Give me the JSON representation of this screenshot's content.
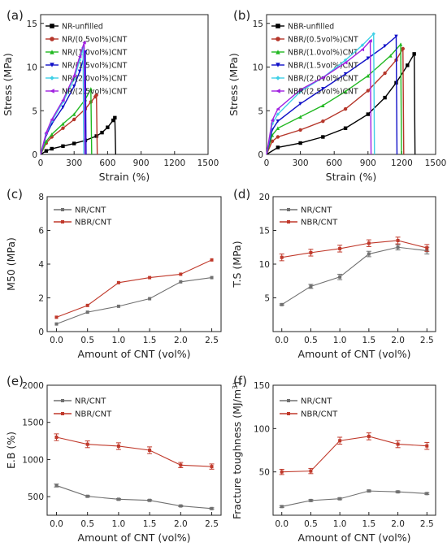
{
  "chart_data": [
    {
      "type": "line",
      "panel_label": "(a)",
      "xlabel": "Strain (%)",
      "ylabel": "Stress (MPa)",
      "xlim": [
        0,
        1500
      ],
      "ylim": [
        0,
        16
      ],
      "xticks": [
        0,
        300,
        600,
        900,
        1200,
        1500
      ],
      "yticks": [
        0,
        5,
        10,
        15
      ],
      "legend_position": "top-left",
      "series": [
        {
          "name": "NR-unfilled",
          "color": "#000000",
          "marker": "square",
          "x": [
            0,
            50,
            100,
            200,
            300,
            400,
            500,
            550,
            600,
            650,
            665
          ],
          "y": [
            0,
            0.4,
            0.65,
            0.95,
            1.25,
            1.6,
            2.1,
            2.5,
            3.1,
            3.9,
            4.2
          ]
        },
        {
          "name": "NR/(0.5vol%)CNT",
          "color": "#b5362a",
          "marker": "circle",
          "x": [
            0,
            50,
            100,
            200,
            300,
            400,
            450,
            490,
            500
          ],
          "y": [
            0,
            1.3,
            2.0,
            3.0,
            4.0,
            5.2,
            6.0,
            6.6,
            6.8
          ]
        },
        {
          "name": "NR/(1.0vol%)CNT",
          "color": "#22b822",
          "marker": "triangle-up",
          "x": [
            0,
            50,
            100,
            200,
            300,
            400,
            450
          ],
          "y": [
            0,
            1.5,
            2.3,
            3.5,
            4.6,
            6.3,
            7.5
          ]
        },
        {
          "name": "NR/(1.5vol%)CNT",
          "color": "#1010c8",
          "marker": "triangle-down",
          "x": [
            0,
            50,
            100,
            200,
            300,
            350,
            390,
            400
          ],
          "y": [
            0,
            2.2,
            3.5,
            5.4,
            7.8,
            9.5,
            11.2,
            11.7
          ]
        },
        {
          "name": "NR/(2.0vol%)CNT",
          "color": "#3fd0e6",
          "marker": "diamond",
          "x": [
            0,
            50,
            100,
            200,
            300,
            350,
            380
          ],
          "y": [
            0,
            2.4,
            3.8,
            6.0,
            8.6,
            10.8,
            12.2
          ]
        },
        {
          "name": "NR/(2.5vol%)CNT",
          "color": "#a020e0",
          "marker": "triangle-left",
          "x": [
            0,
            50,
            100,
            200,
            300,
            350,
            390
          ],
          "y": [
            0,
            2.5,
            4.0,
            6.2,
            9.0,
            11.2,
            12.8
          ]
        }
      ]
    },
    {
      "type": "line",
      "panel_label": "(b)",
      "xlabel": "Strain (%)",
      "ylabel": "Stress (MPa)",
      "xlim": [
        0,
        1500
      ],
      "ylim": [
        0,
        16
      ],
      "xticks": [
        0,
        300,
        600,
        900,
        1200,
        1500
      ],
      "yticks": [
        0,
        5,
        10,
        15
      ],
      "legend_position": "top-left",
      "series": [
        {
          "name": "NBR-unfilled",
          "color": "#000000",
          "marker": "square",
          "x": [
            0,
            100,
            300,
            500,
            700,
            900,
            1050,
            1150,
            1250,
            1310
          ],
          "y": [
            0,
            0.8,
            1.3,
            2.0,
            3.0,
            4.6,
            6.5,
            8.2,
            10.2,
            11.5
          ]
        },
        {
          "name": "NBR/(0.5vol%)CNT",
          "color": "#b5362a",
          "marker": "circle",
          "x": [
            0,
            50,
            100,
            300,
            500,
            700,
            900,
            1050,
            1150,
            1210
          ],
          "y": [
            0,
            1.5,
            2.0,
            2.8,
            3.8,
            5.2,
            7.3,
            9.3,
            10.8,
            12.1
          ]
        },
        {
          "name": "NBR/(1.0vol%)CNT",
          "color": "#22b822",
          "marker": "triangle-up",
          "x": [
            0,
            50,
            100,
            300,
            500,
            700,
            900,
            1100,
            1190
          ],
          "y": [
            0,
            2.2,
            3.0,
            4.3,
            5.6,
            7.2,
            9.0,
            11.3,
            12.6
          ]
        },
        {
          "name": "NBR/(1.5vol%)CNT",
          "color": "#1010c8",
          "marker": "triangle-down",
          "x": [
            0,
            50,
            100,
            300,
            500,
            700,
            900,
            1050,
            1150
          ],
          "y": [
            0,
            2.8,
            3.8,
            5.8,
            7.5,
            9.2,
            11.0,
            12.4,
            13.5
          ]
        },
        {
          "name": "NBR/(2.0vol%)CNT",
          "color": "#3fd0e6",
          "marker": "diamond",
          "x": [
            0,
            50,
            100,
            300,
            500,
            700,
            850,
            950
          ],
          "y": [
            0,
            3.5,
            4.6,
            7.2,
            8.8,
            10.8,
            12.5,
            13.8
          ]
        },
        {
          "name": "NBR/(2.5vol%)CNT",
          "color": "#a020e0",
          "marker": "triangle-left",
          "x": [
            0,
            50,
            100,
            300,
            500,
            700,
            850,
            920
          ],
          "y": [
            0,
            3.9,
            5.2,
            7.4,
            8.8,
            10.5,
            12.0,
            13.0
          ]
        }
      ]
    },
    {
      "type": "line",
      "panel_label": "(c)",
      "xlabel": "Amount of CNT (vol%)",
      "ylabel": "M50 (MPa)",
      "x": [
        0.0,
        0.5,
        1.0,
        1.5,
        2.0,
        2.5
      ],
      "xlim": [
        -0.15,
        2.65
      ],
      "ylim": [
        0,
        8
      ],
      "xticks": [
        "0.0",
        "0.5",
        "1.0",
        "1.5",
        "2.0",
        "2.5"
      ],
      "yticks": [
        0,
        2,
        4,
        6,
        8
      ],
      "legend_position": "top-left",
      "series": [
        {
          "name": "NR/CNT",
          "color": "#707070",
          "values": [
            0.45,
            1.15,
            1.5,
            1.95,
            2.95,
            3.2
          ]
        },
        {
          "name": "NBR/CNT",
          "color": "#c0392b",
          "values": [
            0.85,
            1.55,
            2.9,
            3.2,
            3.4,
            4.25
          ]
        }
      ]
    },
    {
      "type": "line",
      "panel_label": "(d)",
      "xlabel": "Amount of CNT (vol%)",
      "ylabel": "T.S (MPa)",
      "x": [
        0.0,
        0.5,
        1.0,
        1.5,
        2.0,
        2.5
      ],
      "xlim": [
        -0.15,
        2.65
      ],
      "ylim": [
        0,
        20
      ],
      "xticks": [
        "0.0",
        "0.5",
        "1.0",
        "1.5",
        "2.0",
        "2.5"
      ],
      "yticks": [
        5,
        10,
        15,
        20
      ],
      "legend_position": "top-left",
      "series": [
        {
          "name": "NR/CNT",
          "color": "#707070",
          "values": [
            4.0,
            6.7,
            8.1,
            11.5,
            12.5,
            12.0
          ],
          "errors": [
            0.1,
            0.3,
            0.4,
            0.4,
            0.4,
            0.5
          ]
        },
        {
          "name": "NBR/CNT",
          "color": "#c0392b",
          "values": [
            11.0,
            11.7,
            12.3,
            13.1,
            13.5,
            12.4
          ],
          "errors": [
            0.5,
            0.5,
            0.5,
            0.5,
            0.5,
            0.5
          ]
        }
      ]
    },
    {
      "type": "line",
      "panel_label": "(e)",
      "xlabel": "Amount of CNT (vol%)",
      "ylabel": "E.B (%)",
      "x": [
        0.0,
        0.5,
        1.0,
        1.5,
        2.0,
        2.5
      ],
      "xlim": [
        -0.15,
        2.65
      ],
      "ylim": [
        250,
        2000
      ],
      "xticks": [
        "0.0",
        "0.5",
        "1.0",
        "1.5",
        "2.0",
        "2.5"
      ],
      "yticks": [
        500,
        1000,
        1500,
        2000
      ],
      "legend_position": "top-left",
      "series": [
        {
          "name": "NR/CNT",
          "color": "#707070",
          "values": [
            650,
            505,
            465,
            450,
            375,
            340
          ],
          "errors": [
            20,
            10,
            10,
            10,
            10,
            10
          ]
        },
        {
          "name": "NBR/CNT",
          "color": "#c0392b",
          "values": [
            1300,
            1205,
            1180,
            1125,
            925,
            905
          ],
          "errors": [
            45,
            45,
            45,
            45,
            35,
            35
          ]
        }
      ]
    },
    {
      "type": "line",
      "panel_label": "(f)",
      "xlabel": "Amount of CNT (vol%)",
      "ylabel": "Fracture toughness (MJ/m",
      "ylabel_sup": "3",
      "ylabel_end": ")",
      "x": [
        0.0,
        0.5,
        1.0,
        1.5,
        2.0,
        2.5
      ],
      "xlim": [
        -0.15,
        2.65
      ],
      "ylim": [
        0,
        150
      ],
      "xticks": [
        "0.0",
        "0.5",
        "1.0",
        "1.5",
        "2.0",
        "2.5"
      ],
      "yticks": [
        50,
        100,
        150
      ],
      "legend_position": "top-left",
      "series": [
        {
          "name": "NR/CNT",
          "color": "#707070",
          "values": [
            10,
            17,
            19,
            28,
            27,
            25
          ],
          "errors": [
            1,
            1,
            1,
            1,
            1,
            1
          ]
        },
        {
          "name": "NBR/CNT",
          "color": "#c0392b",
          "values": [
            50,
            51,
            86,
            91,
            82,
            80
          ],
          "errors": [
            3,
            3,
            4,
            4,
            4,
            4
          ]
        }
      ]
    }
  ]
}
